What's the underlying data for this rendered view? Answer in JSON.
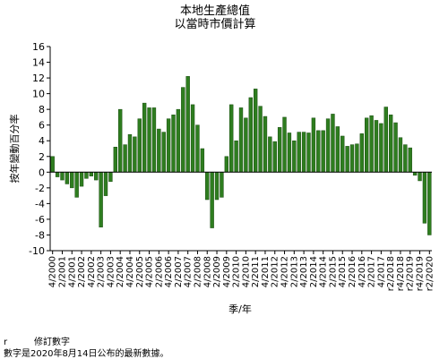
{
  "chart_data": {
    "type": "bar",
    "title": "本地生產總值",
    "subtitle": "以當時市價計算",
    "xlabel": "季/年",
    "ylabel": "按年變動百分率",
    "ylim": [
      -10,
      16
    ],
    "yticks": [
      -10,
      -8,
      -6,
      -4,
      -2,
      0,
      2,
      4,
      6,
      8,
      10,
      12,
      14,
      16
    ],
    "grid": false,
    "bar_color": "#2e7d1f",
    "bar_stroke": "#1a4d12",
    "categories": [
      "4/2000",
      "1/2001",
      "2/2001",
      "3/2001",
      "4/2001",
      "1/2002",
      "2/2002",
      "3/2002",
      "4/2002",
      "1/2003",
      "2/2003",
      "3/2003",
      "4/2003",
      "1/2004",
      "2/2004",
      "3/2004",
      "4/2004",
      "1/2005",
      "2/2005",
      "3/2005",
      "4/2005",
      "1/2006",
      "2/2006",
      "3/2006",
      "4/2006",
      "1/2007",
      "2/2007",
      "3/2007",
      "4/2007",
      "1/2008",
      "2/2008",
      "3/2008",
      "4/2008",
      "1/2009",
      "2/2009",
      "3/2009",
      "4/2009",
      "1/2010",
      "2/2010",
      "3/2010",
      "4/2010",
      "1/2011",
      "2/2011",
      "3/2011",
      "4/2011",
      "1/2012",
      "2/2012",
      "3/2012",
      "4/2012",
      "1/2013",
      "2/2013",
      "3/2013",
      "4/2013",
      "1/2014",
      "2/2014",
      "3/2014",
      "4/2014",
      "1/2015",
      "2/2015",
      "3/2015",
      "4/2015",
      "1/2016",
      "2/2016",
      "3/2016",
      "4/2016",
      "1/2017",
      "2/2017",
      "3/2017",
      "4/2017",
      "1/2018",
      "2/2018",
      "3/2018",
      "4/2018",
      "1/2019",
      "2/2019",
      "3/2019",
      "4/2019",
      "1/2020",
      "2/2020"
    ],
    "xtick_labels": [
      "4/2000",
      "2/2001",
      "4/2001",
      "2/2002",
      "4/2002",
      "2/2003",
      "4/2003",
      "2/2004",
      "4/2004",
      "2/2005",
      "4/2005",
      "2/2006",
      "4/2006",
      "2/2007",
      "4/2007",
      "2/2008",
      "4/2008",
      "2/2009",
      "4/2009",
      "2/2010",
      "4/2010",
      "2/2011",
      "4/2011",
      "2/2012",
      "4/2012",
      "2/2013",
      "4/2013",
      "2/2014",
      "4/2014",
      "2/2015",
      "4/2015",
      "2/2016",
      "4/2016",
      "2/2017",
      "4/2017",
      "r2/2018",
      "r4/2018",
      "r2/2019",
      "r4/2019",
      "r2/2020"
    ],
    "values": [
      2.0,
      -0.6,
      -1.0,
      -1.5,
      -2.0,
      -3.2,
      -1.8,
      -0.8,
      -0.5,
      -1.0,
      -7.0,
      -3.0,
      -1.2,
      3.2,
      8.0,
      3.5,
      4.8,
      4.5,
      6.8,
      8.8,
      8.2,
      8.2,
      5.5,
      5.1,
      6.8,
      7.3,
      8.0,
      10.8,
      12.2,
      8.6,
      6.0,
      3.0,
      -3.5,
      -7.1,
      -3.5,
      -3.2,
      2.0,
      8.6,
      4.0,
      8.2,
      6.9,
      9.5,
      10.6,
      8.4,
      7.1,
      4.5,
      3.9,
      5.7,
      7.0,
      5.0,
      4.0,
      5.1,
      5.1,
      5.0,
      6.9,
      5.3,
      5.3,
      6.8,
      7.4,
      5.8,
      4.6,
      3.3,
      3.5,
      3.6,
      4.9,
      6.9,
      7.2,
      6.6,
      6.2,
      8.3,
      7.3,
      6.3,
      4.4,
      3.5,
      3.1,
      -0.4,
      -1.1,
      -6.5,
      -8.0
    ]
  },
  "notes": {
    "revised_key": "r",
    "revised_text": "修訂數字",
    "release_text": "數字是2020年8月14日公布的最新數據。"
  }
}
